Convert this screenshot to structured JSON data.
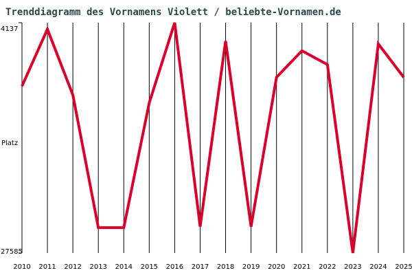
{
  "chart_data": {
    "type": "line",
    "title": "Trenddiagramm des Vornamens Violett / beliebte-Vornamen.de",
    "ylabel": "Platz",
    "x": [
      2010,
      2011,
      2012,
      2013,
      2014,
      2015,
      2016,
      2017,
      2018,
      2019,
      2020,
      2021,
      2022,
      2023,
      2024,
      2025
    ],
    "xlim": [
      2010,
      2025
    ],
    "xticks": [
      2010,
      2011,
      2012,
      2013,
      2014,
      2015,
      2016,
      2017,
      2018,
      2019,
      2020,
      2021,
      2022,
      2023,
      2024,
      2025
    ],
    "series": [
      {
        "color": "#d9002b",
        "values": [
          10600,
          4800,
          11500,
          25000,
          25000,
          12300,
          4137,
          24900,
          6000,
          24900,
          9700,
          7000,
          8400,
          27585,
          6300,
          9700
        ]
      }
    ],
    "ylim": [
      27585,
      4137
    ],
    "yticks": [
      4137,
      27585
    ],
    "grid": true
  }
}
